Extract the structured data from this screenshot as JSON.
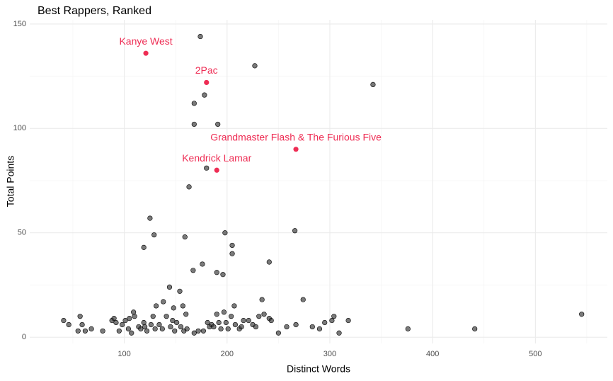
{
  "chart_data": {
    "type": "scatter",
    "title": "Best Rappers, Ranked",
    "x_label": "Distinct Words",
    "y_label": "Total Points",
    "xlim": [
      8,
      570
    ],
    "ylim": [
      -3,
      152
    ],
    "xticks": [
      100,
      200,
      300,
      400,
      500
    ],
    "yticks": [
      0,
      50,
      100,
      150
    ],
    "x_minor_grid": [
      50,
      150,
      250,
      350,
      450,
      550
    ],
    "y_minor_grid": [
      25,
      75,
      125
    ],
    "grid": true,
    "series": [
      {
        "color": "#333333",
        "x": [
          174,
          227,
          342,
          178,
          168,
          191,
          168,
          180,
          163,
          125,
          129,
          198,
          266,
          159,
          119,
          205,
          205,
          241,
          176,
          167,
          190,
          196,
          144,
          154,
          274,
          234,
          138,
          207,
          131,
          157,
          545,
          41,
          46,
          57,
          59,
          55,
          62,
          68,
          79,
          88,
          90,
          92,
          95,
          98,
          101,
          104,
          105,
          107,
          109,
          110,
          114,
          116,
          119,
          120,
          122,
          126,
          128,
          130,
          134,
          137,
          141,
          145,
          147,
          148,
          149,
          151,
          155,
          158,
          160,
          161,
          168,
          172,
          177,
          181,
          183,
          185,
          187,
          190,
          192,
          194,
          197,
          199,
          201,
          204,
          208,
          212,
          214,
          216,
          221,
          225,
          228,
          231,
          236,
          241,
          243,
          250,
          258,
          267,
          283,
          290,
          295,
          302,
          304,
          309,
          318,
          376,
          441
        ],
        "values": [
          144,
          130,
          121,
          116,
          112,
          102,
          102,
          81,
          72,
          57,
          49,
          50,
          51,
          48,
          43,
          44,
          40,
          36,
          35,
          32,
          31,
          30,
          24,
          22,
          18,
          18,
          17,
          15,
          15,
          15,
          11,
          8,
          6,
          10,
          6,
          3,
          3,
          4,
          3,
          8,
          9,
          7,
          3,
          6,
          8,
          4,
          9,
          2,
          12,
          10,
          5,
          4,
          7,
          5,
          3,
          6,
          10,
          4,
          6,
          4,
          10,
          5,
          8,
          14,
          3,
          7,
          5,
          3,
          11,
          4,
          2,
          3,
          3,
          7,
          5,
          6,
          5,
          11,
          7,
          4,
          12,
          7,
          4,
          10,
          6,
          4,
          5,
          8,
          8,
          6,
          5,
          10,
          11,
          9,
          8,
          2,
          5,
          6,
          5,
          4,
          7,
          8,
          10,
          2,
          8,
          4,
          4
        ]
      },
      {
        "color": "#ee2d54",
        "x": [
          121,
          180,
          267,
          190
        ],
        "values": [
          136,
          122,
          90,
          80
        ],
        "labels": [
          "Kanye West",
          "2Pac",
          "Grandmaster Flash & The Furious Five",
          "Kendrick Lamar"
        ]
      }
    ]
  }
}
